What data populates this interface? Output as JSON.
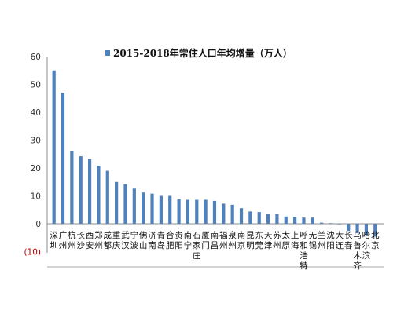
{
  "chart_data": {
    "type": "bar",
    "title": "",
    "xlabel": "",
    "ylabel": "",
    "ylim": [
      -10,
      60
    ],
    "yticks": [
      {
        "value": 60,
        "label": "60"
      },
      {
        "value": 50,
        "label": "50"
      },
      {
        "value": 40,
        "label": "40"
      },
      {
        "value": 30,
        "label": "30"
      },
      {
        "value": 20,
        "label": "20"
      },
      {
        "value": 10,
        "label": "10"
      },
      {
        "value": 0,
        "label": "0"
      },
      {
        "value": -10,
        "label": "(10)"
      }
    ],
    "categories": [
      "深圳",
      "广州",
      "杭州",
      "长沙",
      "西安",
      "郑州",
      "成都",
      "重庆",
      "武汉",
      "宁波",
      "佛山",
      "济南",
      "青岛",
      "合肥",
      "贵阳",
      "南宁",
      "石家庄",
      "厦门",
      "南昌",
      "福州",
      "泉州",
      "南京",
      "昆明",
      "东莞",
      "天津",
      "苏州",
      "太原",
      "上海",
      "呼和浩特",
      "无锡",
      "兰州",
      "沈阳",
      "大连",
      "长春",
      "乌鲁木齐",
      "哈尔滨",
      "北京"
    ],
    "series": [
      {
        "name": "2015-2018年常住人口年均增量（万人）",
        "color": "#4f81bd",
        "values": [
          55,
          47,
          26.2,
          24.2,
          23.2,
          20.8,
          19,
          15,
          14.2,
          12.6,
          11.2,
          10.8,
          10,
          10,
          8.8,
          8.6,
          8.6,
          8.6,
          8.2,
          7.2,
          6.8,
          5.6,
          4.4,
          4.2,
          3.6,
          3.4,
          2.6,
          2.4,
          2.2,
          2.2,
          0.4,
          0.2,
          -0.2,
          -2.6,
          -3.4,
          -4.2,
          -4.6
        ]
      }
    ],
    "legend": "top-right",
    "grid": false
  }
}
